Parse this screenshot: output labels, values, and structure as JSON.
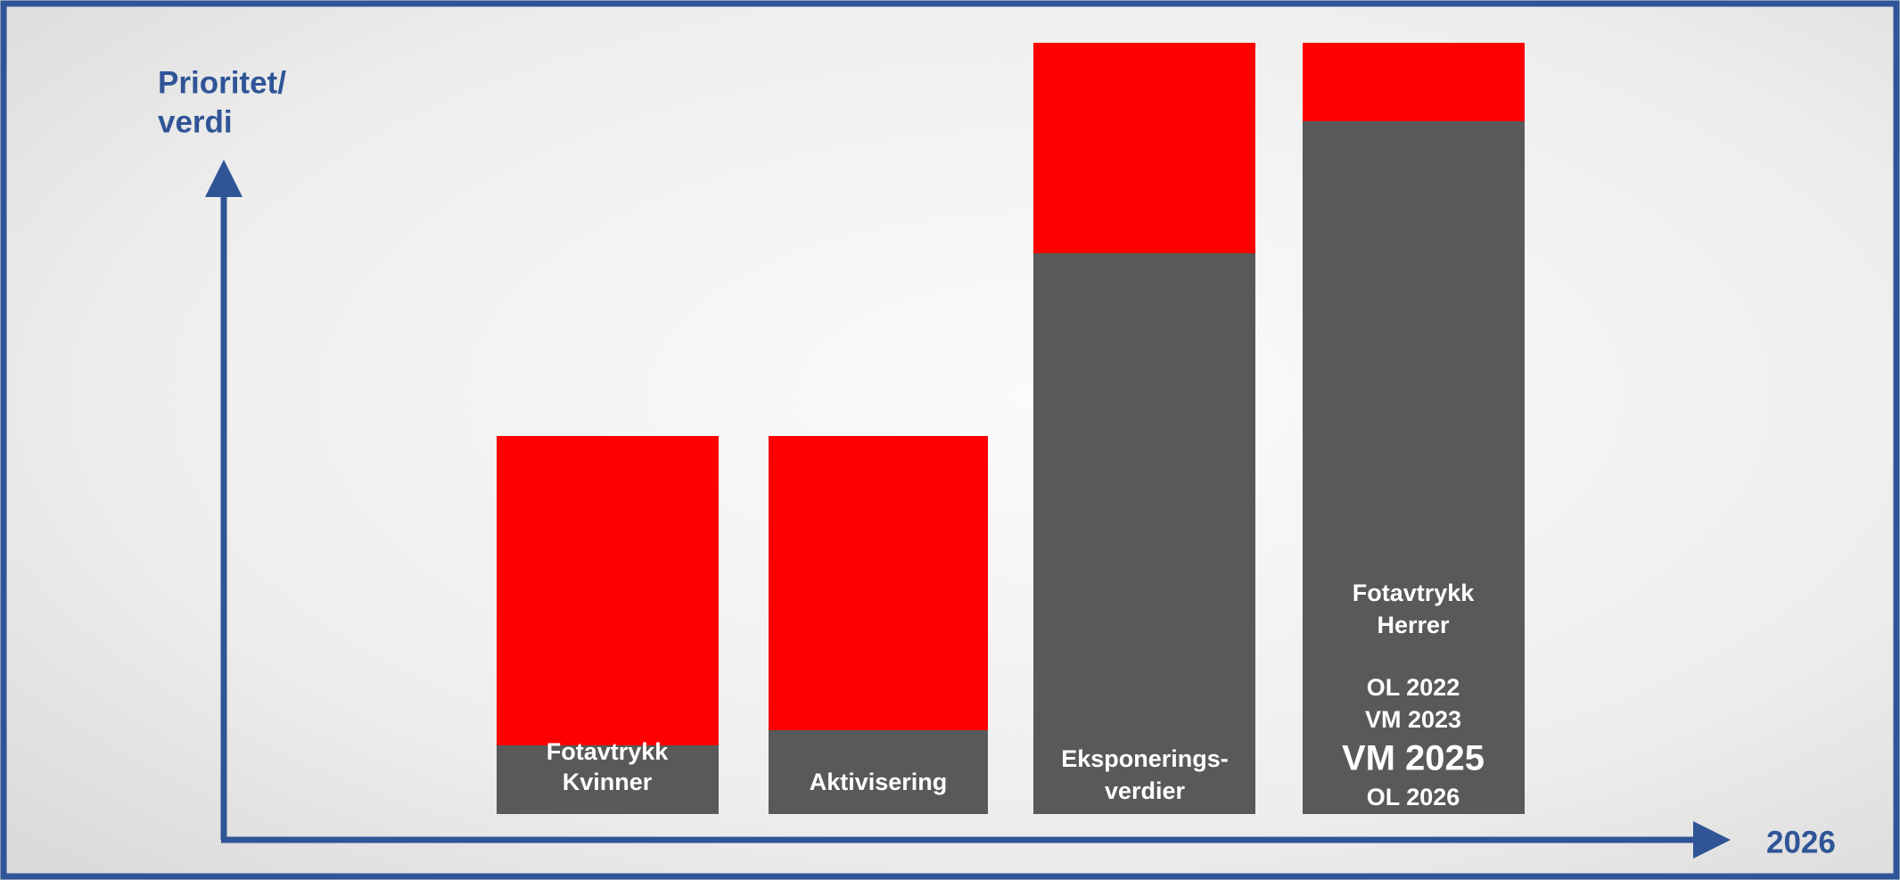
{
  "axes": {
    "y_label": [
      "Prioritet/",
      "verdi"
    ],
    "x_label": "2026"
  },
  "bars": [
    {
      "lines": [
        "Fotavtrykk",
        "Kvinner"
      ]
    },
    {
      "lines": [
        "Aktivisering"
      ]
    },
    {
      "lines": [
        "Eksponerings-",
        "verdier"
      ]
    },
    {
      "lines": [
        "Fotavtrykk",
        "Herrer",
        "OL 2022",
        "VM 2023",
        "VM 2025",
        "OL 2026"
      ]
    }
  ]
}
